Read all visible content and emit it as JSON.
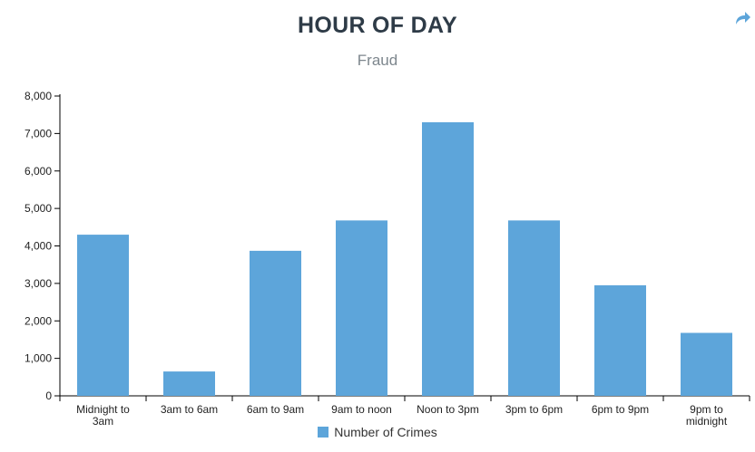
{
  "header": {
    "title": "HOUR OF DAY",
    "subtitle": "Fraud"
  },
  "toolbar": {
    "share_icon": "share-arrow-icon"
  },
  "colors": {
    "bar": "#5da5da",
    "title": "#2e3b47",
    "subtitle": "#7d868d"
  },
  "legend": {
    "label": "Number of Crimes"
  },
  "chart_data": {
    "type": "bar",
    "categories": [
      [
        "Midnight to",
        "3am"
      ],
      [
        "3am to 6am"
      ],
      [
        "6am to 9am"
      ],
      [
        "9am to noon"
      ],
      [
        "Noon to 3pm"
      ],
      [
        "3pm to 6pm"
      ],
      [
        "6pm to 9pm"
      ],
      [
        "9pm to",
        "midnight"
      ]
    ],
    "series": [
      {
        "name": "Number of Crimes",
        "values": [
          4300,
          650,
          3870,
          4680,
          7300,
          4680,
          2950,
          1680
        ]
      }
    ],
    "yticks": [
      "0",
      "1,000",
      "2,000",
      "3,000",
      "4,000",
      "5,000",
      "6,000",
      "7,000",
      "8,000"
    ],
    "ylim": [
      0,
      8000
    ],
    "title": "HOUR OF DAY",
    "subtitle": "Fraud",
    "legend_position": "bottom"
  }
}
